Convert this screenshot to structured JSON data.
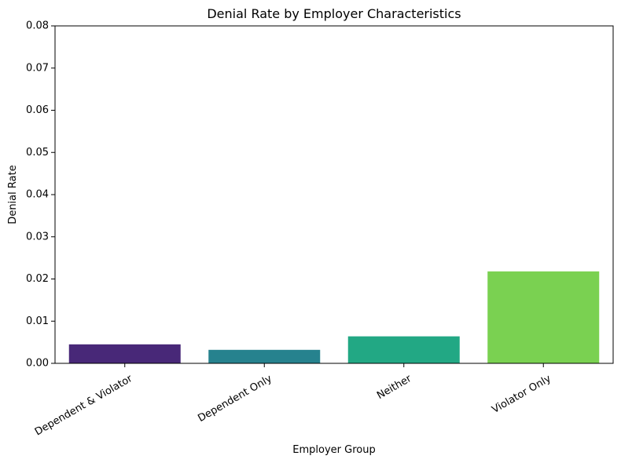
{
  "chart_data": {
    "type": "bar",
    "title": "Denial Rate by Employer Characteristics",
    "xlabel": "Employer Group",
    "ylabel": "Denial Rate",
    "categories": [
      "Dependent & Violator",
      "Dependent Only",
      "Neither",
      "Violator Only"
    ],
    "values": [
      0.0045,
      0.0032,
      0.0064,
      0.0218
    ],
    "colors": [
      "#482878",
      "#26828e",
      "#22a884",
      "#7ad151"
    ],
    "ylim": [
      0,
      0.08
    ],
    "yticks": [
      "0.00",
      "0.01",
      "0.02",
      "0.03",
      "0.04",
      "0.05",
      "0.06",
      "0.07",
      "0.08"
    ],
    "ytick_values": [
      0,
      0.01,
      0.02,
      0.03,
      0.04,
      0.05,
      0.06,
      0.07,
      0.08
    ],
    "grid": false,
    "legend": "none",
    "xtick_rotation": 30
  }
}
